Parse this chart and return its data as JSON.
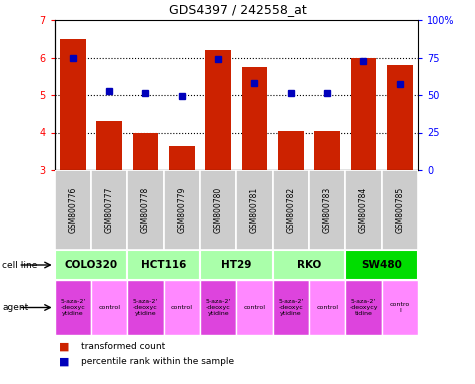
{
  "title": "GDS4397 / 242558_at",
  "samples": [
    "GSM800776",
    "GSM800777",
    "GSM800778",
    "GSM800779",
    "GSM800780",
    "GSM800781",
    "GSM800782",
    "GSM800783",
    "GSM800784",
    "GSM800785"
  ],
  "red_values": [
    6.5,
    4.3,
    4.0,
    3.65,
    6.2,
    5.75,
    4.05,
    4.05,
    6.0,
    5.8
  ],
  "blue_values": [
    0.75,
    0.53,
    0.515,
    0.495,
    0.74,
    0.58,
    0.515,
    0.515,
    0.73,
    0.575
  ],
  "ylim_left": [
    3,
    7
  ],
  "ylim_right": [
    0,
    1
  ],
  "yticks_left": [
    3,
    4,
    5,
    6,
    7
  ],
  "ytick_labels_right": [
    "0",
    "25",
    "50",
    "75",
    "100%"
  ],
  "yticks_right": [
    0,
    0.25,
    0.5,
    0.75,
    1.0
  ],
  "cell_lines": [
    {
      "label": "COLO320",
      "start": 0,
      "end": 2,
      "color": "#aaffaa"
    },
    {
      "label": "HCT116",
      "start": 2,
      "end": 4,
      "color": "#aaffaa"
    },
    {
      "label": "HT29",
      "start": 4,
      "end": 6,
      "color": "#aaffaa"
    },
    {
      "label": "RKO",
      "start": 6,
      "end": 8,
      "color": "#aaffaa"
    },
    {
      "label": "SW480",
      "start": 8,
      "end": 10,
      "color": "#00dd00"
    }
  ],
  "agents": [
    {
      "label": "5-aza-2'\n-deoxyc\nytidine",
      "type": "drug",
      "col": 0
    },
    {
      "label": "control",
      "type": "control",
      "col": 1
    },
    {
      "label": "5-aza-2'\n-deoxyc\nytidine",
      "type": "drug",
      "col": 2
    },
    {
      "label": "control",
      "type": "control",
      "col": 3
    },
    {
      "label": "5-aza-2'\n-deoxyc\nytidine",
      "type": "drug",
      "col": 4
    },
    {
      "label": "control",
      "type": "control",
      "col": 5
    },
    {
      "label": "5-aza-2'\n-deoxyc\nytidine",
      "type": "drug",
      "col": 6
    },
    {
      "label": "control",
      "type": "control",
      "col": 7
    },
    {
      "label": "5-aza-2'\n-deoxycy\ntidine",
      "type": "drug",
      "col": 8
    },
    {
      "label": "contro\nl",
      "type": "control",
      "col": 9
    }
  ],
  "bar_color": "#cc2200",
  "dot_color": "#0000bb",
  "sample_bg": "#cccccc",
  "drug_color": "#dd44dd",
  "control_color": "#ff88ff",
  "grid_dotted": [
    4,
    5,
    6
  ]
}
